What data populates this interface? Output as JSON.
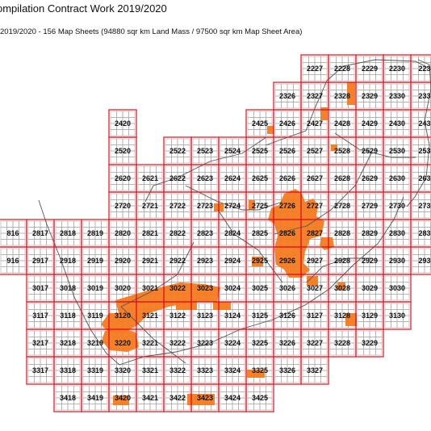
{
  "header": {
    "title": "ompilation Contract Work 2019/2020",
    "subtitle": "2019/2020 - 156 Map Sheets (94880 sqr km Land Mass / 97500 sqr km Map Sheet Area)"
  },
  "colors": {
    "sheet_border": "#e0101e",
    "subgrid": "#a8a8a8",
    "highlight": "#f47a20",
    "boundary": "#555555"
  },
  "rows": [
    {
      "sheets": [
        "2227",
        "2228",
        "2229",
        "2230",
        "223"
      ]
    },
    {
      "sheets": [
        "2326",
        "2327",
        "2328",
        "2329",
        "2330",
        "233"
      ]
    },
    {
      "sheets": [
        "2420",
        "2425",
        "2426",
        "2427",
        "2428",
        "2429",
        "2430",
        "243"
      ]
    },
    {
      "sheets": [
        "2520",
        "2522",
        "2523",
        "2524",
        "2525",
        "2526",
        "2527",
        "2528",
        "2529",
        "2530",
        "253"
      ]
    },
    {
      "sheets": [
        "2620",
        "2621",
        "2622",
        "2623",
        "2624",
        "2625",
        "2626",
        "2627",
        "2628",
        "2629",
        "2630",
        "263"
      ]
    },
    {
      "sheets": [
        "2720",
        "2721",
        "2722",
        "2723",
        "2724",
        "2725",
        "2726",
        "2727",
        "2728",
        "2729",
        "2730",
        "273"
      ]
    },
    {
      "sheets": [
        "816",
        "2817",
        "2818",
        "2819",
        "2820",
        "2821",
        "2822",
        "2823",
        "2824",
        "2825",
        "2826",
        "2827",
        "2828",
        "2829",
        "2830",
        "283"
      ]
    },
    {
      "sheets": [
        "916",
        "2917",
        "2918",
        "2919",
        "2920",
        "2921",
        "2922",
        "2923",
        "2924",
        "2925",
        "2926",
        "2927",
        "2928",
        "2929",
        "2930",
        "293"
      ]
    },
    {
      "sheets": [
        "3017",
        "3018",
        "3019",
        "3020",
        "3021",
        "3022",
        "3023",
        "3024",
        "3025",
        "3026",
        "3027",
        "3028",
        "3029",
        "3030"
      ]
    },
    {
      "sheets": [
        "3117",
        "3118",
        "3119",
        "3120",
        "3121",
        "3122",
        "3123",
        "3124",
        "3125",
        "3126",
        "3127",
        "3128",
        "3129",
        "3130"
      ]
    },
    {
      "sheets": [
        "3217",
        "3218",
        "3219",
        "3220",
        "3221",
        "3222",
        "3223",
        "3224",
        "3225",
        "3226",
        "3227",
        "3228",
        "3229"
      ]
    },
    {
      "sheets": [
        "3317",
        "3318",
        "3319",
        "3320",
        "3321",
        "3322",
        "3323",
        "3324",
        "3325",
        "3326",
        "3327"
      ]
    },
    {
      "sheets": [
        "3418",
        "3419",
        "3420",
        "3421",
        "3422",
        "3423",
        "3424",
        "3425"
      ]
    }
  ]
}
